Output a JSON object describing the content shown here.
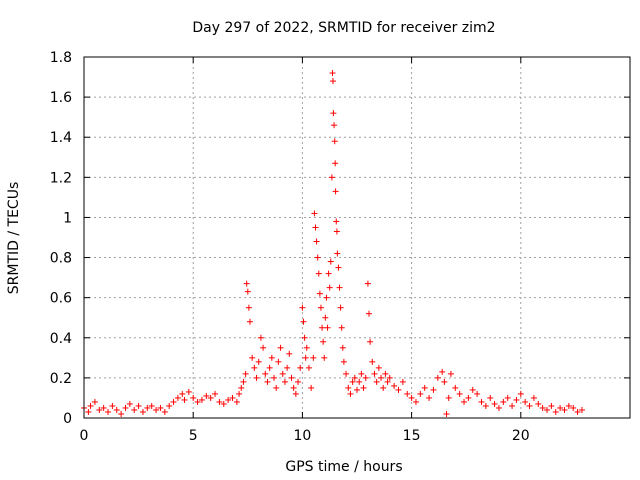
{
  "chart_data": {
    "type": "scatter",
    "title": "Day 297 of 2022, SRMTID for receiver zim2",
    "xlabel": "GPS time / hours",
    "ylabel": "SRMTID / TECUs",
    "xlim": [
      0,
      25
    ],
    "ylim": [
      0,
      1.8
    ],
    "xticks": [
      0,
      5,
      10,
      15,
      20
    ],
    "xtick_labels": [
      "0",
      "5",
      "10",
      "15",
      "20"
    ],
    "yticks": [
      0,
      0.2,
      0.4,
      0.6,
      0.8,
      1.0,
      1.2,
      1.4,
      1.6,
      1.8
    ],
    "ytick_labels": [
      "0",
      "0.2",
      "0.4",
      "0.6",
      "0.8",
      "1",
      "1.2",
      "1.4",
      "1.6",
      "1.8"
    ],
    "grid": true,
    "marker": "+",
    "color": "#ff0000",
    "series": [
      {
        "name": "SRMTID",
        "points": [
          [
            0.0,
            0.05
          ],
          [
            0.2,
            0.03
          ],
          [
            0.3,
            0.06
          ],
          [
            0.5,
            0.08
          ],
          [
            0.7,
            0.04
          ],
          [
            0.9,
            0.05
          ],
          [
            1.1,
            0.03
          ],
          [
            1.3,
            0.06
          ],
          [
            1.5,
            0.04
          ],
          [
            1.7,
            0.02
          ],
          [
            1.9,
            0.05
          ],
          [
            2.1,
            0.07
          ],
          [
            2.3,
            0.04
          ],
          [
            2.5,
            0.06
          ],
          [
            2.7,
            0.03
          ],
          [
            2.9,
            0.05
          ],
          [
            3.1,
            0.06
          ],
          [
            3.3,
            0.04
          ],
          [
            3.5,
            0.05
          ],
          [
            3.7,
            0.03
          ],
          [
            3.9,
            0.06
          ],
          [
            4.1,
            0.08
          ],
          [
            4.3,
            0.1
          ],
          [
            4.5,
            0.12
          ],
          [
            4.6,
            0.09
          ],
          [
            4.8,
            0.13
          ],
          [
            5.0,
            0.1
          ],
          [
            5.2,
            0.08
          ],
          [
            5.4,
            0.09
          ],
          [
            5.6,
            0.11
          ],
          [
            5.8,
            0.1
          ],
          [
            6.0,
            0.12
          ],
          [
            6.2,
            0.08
          ],
          [
            6.4,
            0.07
          ],
          [
            6.6,
            0.09
          ],
          [
            6.8,
            0.1
          ],
          [
            7.0,
            0.08
          ],
          [
            7.1,
            0.12
          ],
          [
            7.2,
            0.15
          ],
          [
            7.3,
            0.18
          ],
          [
            7.4,
            0.22
          ],
          [
            7.45,
            0.67
          ],
          [
            7.5,
            0.63
          ],
          [
            7.55,
            0.55
          ],
          [
            7.6,
            0.48
          ],
          [
            7.7,
            0.3
          ],
          [
            7.8,
            0.25
          ],
          [
            7.9,
            0.2
          ],
          [
            8.0,
            0.28
          ],
          [
            8.1,
            0.4
          ],
          [
            8.2,
            0.35
          ],
          [
            8.3,
            0.22
          ],
          [
            8.4,
            0.18
          ],
          [
            8.5,
            0.25
          ],
          [
            8.6,
            0.3
          ],
          [
            8.7,
            0.2
          ],
          [
            8.8,
            0.15
          ],
          [
            8.9,
            0.28
          ],
          [
            9.0,
            0.35
          ],
          [
            9.1,
            0.22
          ],
          [
            9.2,
            0.18
          ],
          [
            9.3,
            0.25
          ],
          [
            9.4,
            0.32
          ],
          [
            9.5,
            0.2
          ],
          [
            9.6,
            0.15
          ],
          [
            9.7,
            0.12
          ],
          [
            9.8,
            0.18
          ],
          [
            9.9,
            0.25
          ],
          [
            10.0,
            0.55
          ],
          [
            10.05,
            0.48
          ],
          [
            10.1,
            0.4
          ],
          [
            10.15,
            0.3
          ],
          [
            10.2,
            0.35
          ],
          [
            10.3,
            0.25
          ],
          [
            10.4,
            0.15
          ],
          [
            10.5,
            0.3
          ],
          [
            10.55,
            1.02
          ],
          [
            10.6,
            0.95
          ],
          [
            10.65,
            0.88
          ],
          [
            10.7,
            0.8
          ],
          [
            10.75,
            0.72
          ],
          [
            10.8,
            0.62
          ],
          [
            10.85,
            0.55
          ],
          [
            10.9,
            0.45
          ],
          [
            10.95,
            0.38
          ],
          [
            11.0,
            0.3
          ],
          [
            11.05,
            0.5
          ],
          [
            11.1,
            0.6
          ],
          [
            11.15,
            0.45
          ],
          [
            11.2,
            0.72
          ],
          [
            11.25,
            0.65
          ],
          [
            11.3,
            0.78
          ],
          [
            11.35,
            1.2
          ],
          [
            11.38,
            1.72
          ],
          [
            11.4,
            1.68
          ],
          [
            11.42,
            1.52
          ],
          [
            11.45,
            1.46
          ],
          [
            11.48,
            1.38
          ],
          [
            11.5,
            1.27
          ],
          [
            11.52,
            1.13
          ],
          [
            11.55,
            0.98
          ],
          [
            11.58,
            0.93
          ],
          [
            11.6,
            0.82
          ],
          [
            11.65,
            0.75
          ],
          [
            11.7,
            0.65
          ],
          [
            11.75,
            0.55
          ],
          [
            11.8,
            0.45
          ],
          [
            11.85,
            0.35
          ],
          [
            11.9,
            0.28
          ],
          [
            12.0,
            0.22
          ],
          [
            12.1,
            0.15
          ],
          [
            12.2,
            0.12
          ],
          [
            12.3,
            0.18
          ],
          [
            12.4,
            0.2
          ],
          [
            12.5,
            0.14
          ],
          [
            12.6,
            0.18
          ],
          [
            12.7,
            0.22
          ],
          [
            12.8,
            0.15
          ],
          [
            12.9,
            0.2
          ],
          [
            13.0,
            0.67
          ],
          [
            13.05,
            0.52
          ],
          [
            13.1,
            0.38
          ],
          [
            13.2,
            0.28
          ],
          [
            13.3,
            0.22
          ],
          [
            13.4,
            0.18
          ],
          [
            13.5,
            0.25
          ],
          [
            13.6,
            0.2
          ],
          [
            13.7,
            0.15
          ],
          [
            13.8,
            0.22
          ],
          [
            13.9,
            0.18
          ],
          [
            14.0,
            0.2
          ],
          [
            14.2,
            0.16
          ],
          [
            14.4,
            0.14
          ],
          [
            14.6,
            0.18
          ],
          [
            14.8,
            0.12
          ],
          [
            15.0,
            0.1
          ],
          [
            15.2,
            0.08
          ],
          [
            15.4,
            0.12
          ],
          [
            15.6,
            0.15
          ],
          [
            15.8,
            0.1
          ],
          [
            16.0,
            0.14
          ],
          [
            16.2,
            0.2
          ],
          [
            16.4,
            0.23
          ],
          [
            16.5,
            0.18
          ],
          [
            16.6,
            0.02
          ],
          [
            16.7,
            0.1
          ],
          [
            16.8,
            0.22
          ],
          [
            17.0,
            0.15
          ],
          [
            17.2,
            0.12
          ],
          [
            17.4,
            0.08
          ],
          [
            17.6,
            0.1
          ],
          [
            17.8,
            0.14
          ],
          [
            18.0,
            0.12
          ],
          [
            18.2,
            0.08
          ],
          [
            18.4,
            0.06
          ],
          [
            18.6,
            0.1
          ],
          [
            18.8,
            0.07
          ],
          [
            19.0,
            0.05
          ],
          [
            19.2,
            0.08
          ],
          [
            19.4,
            0.1
          ],
          [
            19.6,
            0.06
          ],
          [
            19.8,
            0.09
          ],
          [
            20.0,
            0.12
          ],
          [
            20.2,
            0.08
          ],
          [
            20.4,
            0.06
          ],
          [
            20.6,
            0.1
          ],
          [
            20.8,
            0.07
          ],
          [
            21.0,
            0.05
          ],
          [
            21.2,
            0.04
          ],
          [
            21.4,
            0.06
          ],
          [
            21.6,
            0.03
          ],
          [
            21.8,
            0.05
          ],
          [
            22.0,
            0.04
          ],
          [
            22.2,
            0.06
          ],
          [
            22.4,
            0.05
          ],
          [
            22.6,
            0.03
          ],
          [
            22.8,
            0.04
          ]
        ]
      }
    ]
  }
}
